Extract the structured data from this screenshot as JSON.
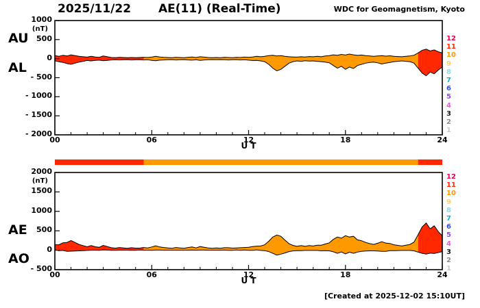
{
  "header": {
    "date": "2025/11/22",
    "title": "AE(11) (Real-Time)",
    "source": "WDC for Geomagnetism, Kyoto"
  },
  "footer": {
    "created": "[Created at 2025-12-02 15:10UT]"
  },
  "legend": {
    "entries": [
      {
        "label": "12",
        "color": "#e60050"
      },
      {
        "label": "11",
        "color": "#ff2800"
      },
      {
        "label": "10",
        "color": "#ff9900"
      },
      {
        "label": "9",
        "color": "#ffcc73"
      },
      {
        "label": "8",
        "color": "#8fd9e6"
      },
      {
        "label": "7",
        "color": "#00b4d9"
      },
      {
        "label": "6",
        "color": "#2d4fe6"
      },
      {
        "label": "5",
        "color": "#8c4fd9"
      },
      {
        "label": "4",
        "color": "#e659d9"
      },
      {
        "label": "3",
        "color": "#1a1a1a"
      },
      {
        "label": "2",
        "color": "#8c8c8c"
      },
      {
        "label": "1",
        "color": "#c9c9c9"
      }
    ]
  },
  "panels": {
    "top": {
      "left_labels": [
        "AU",
        "AL"
      ],
      "unit": "(nT)",
      "x_label": "U T",
      "y_ticks": [
        {
          "label": "1000",
          "value": 1000
        },
        {
          "label": "500",
          "value": 500
        },
        {
          "label": "0",
          "value": 0
        },
        {
          "label": "- 500",
          "value": -500
        },
        {
          "label": "- 1000",
          "value": -1000
        },
        {
          "label": "- 1500",
          "value": -1500
        },
        {
          "label": "- 2000",
          "value": -2000
        }
      ],
      "x_ticks": [
        {
          "label": "00",
          "value": 0
        },
        {
          "label": "06",
          "value": 6
        },
        {
          "label": "12",
          "value": 12
        },
        {
          "label": "18",
          "value": 18
        },
        {
          "label": "24",
          "value": 24
        }
      ]
    },
    "bottom": {
      "left_labels": [
        "AE",
        "AO"
      ],
      "unit": "(nT)",
      "x_label": "U T",
      "y_ticks": [
        {
          "label": "2000",
          "value": 2000
        },
        {
          "label": "1500",
          "value": 1500
        },
        {
          "label": "1000",
          "value": 1000
        },
        {
          "label": "500",
          "value": 500
        },
        {
          "label": "0",
          "value": 0
        },
        {
          "label": "- 500",
          "value": -500
        }
      ],
      "x_ticks": [
        {
          "label": "00",
          "value": 0
        },
        {
          "label": "06",
          "value": 6
        },
        {
          "label": "12",
          "value": 12
        },
        {
          "label": "18",
          "value": 18
        },
        {
          "label": "24",
          "value": 24
        }
      ]
    }
  },
  "chart_data": {
    "type": "area",
    "title": "AE(11) (Real-Time) 2025/11/22",
    "xlabel": "U T",
    "x_unit": "hour UT",
    "x_start": 0,
    "x_end": 24,
    "x_step": 0.25,
    "panels": [
      {
        "name": "AU-AL",
        "ylabel": "(nT)",
        "ylim": [
          -2000,
          1000
        ],
        "series": [
          {
            "name": "AU",
            "values": [
              80,
              60,
              90,
              70,
              100,
              80,
              60,
              50,
              40,
              60,
              45,
              35,
              70,
              50,
              30,
              25,
              35,
              30,
              25,
              30,
              25,
              30,
              35,
              30,
              40,
              60,
              45,
              35,
              30,
              25,
              35,
              30,
              25,
              35,
              45,
              30,
              50,
              40,
              30,
              25,
              30,
              25,
              35,
              30,
              25,
              35,
              30,
              40,
              35,
              45,
              60,
              50,
              60,
              80,
              90,
              70,
              80,
              60,
              50,
              45,
              40,
              50,
              45,
              55,
              50,
              60,
              50,
              70,
              80,
              100,
              90,
              110,
              95,
              120,
              100,
              85,
              95,
              80,
              70,
              60,
              70,
              80,
              65,
              75,
              60,
              55,
              50,
              60,
              70,
              90,
              150,
              220,
              250,
              200,
              230,
              180,
              150
            ]
          },
          {
            "name": "AL",
            "values": [
              -60,
              -80,
              -100,
              -130,
              -150,
              -120,
              -90,
              -70,
              -50,
              -60,
              -45,
              -40,
              -55,
              -45,
              -35,
              -30,
              -35,
              -30,
              -25,
              -35,
              -30,
              -25,
              -35,
              -30,
              -45,
              -55,
              -40,
              -35,
              -30,
              -25,
              -35,
              -30,
              -25,
              -35,
              -40,
              -30,
              -45,
              -35,
              -30,
              -25,
              -30,
              -25,
              -30,
              -35,
              -30,
              -25,
              -35,
              -30,
              -40,
              -50,
              -45,
              -60,
              -80,
              -150,
              -250,
              -320,
              -280,
              -200,
              -120,
              -80,
              -60,
              -70,
              -55,
              -65,
              -60,
              -70,
              -80,
              -90,
              -110,
              -180,
              -250,
              -200,
              -280,
              -220,
              -260,
              -180,
              -150,
              -120,
              -100,
              -90,
              -110,
              -140,
              -120,
              -100,
              -80,
              -70,
              -60,
              -70,
              -80,
              -120,
              -250,
              -380,
              -450,
              -350,
              -400,
              -300,
              -220
            ]
          }
        ]
      },
      {
        "name": "AE-AO",
        "ylabel": "(nT)",
        "ylim": [
          -500,
          2000
        ],
        "series": [
          {
            "name": "AE",
            "values": [
              140,
              140,
              190,
              200,
              250,
              200,
              150,
              120,
              90,
              120,
              90,
              75,
              125,
              95,
              65,
              55,
              70,
              60,
              50,
              65,
              55,
              55,
              70,
              60,
              85,
              115,
              85,
              70,
              60,
              50,
              70,
              60,
              50,
              70,
              85,
              60,
              95,
              75,
              60,
              50,
              60,
              50,
              65,
              65,
              55,
              60,
              65,
              70,
              75,
              95,
              105,
              110,
              140,
              230,
              340,
              390,
              360,
              260,
              170,
              125,
              100,
              120,
              100,
              120,
              110,
              130,
              130,
              160,
              190,
              280,
              340,
              310,
              375,
              340,
              360,
              265,
              245,
              200,
              170,
              150,
              180,
              220,
              185,
              175,
              140,
              125,
              110,
              130,
              150,
              210,
              400,
              600,
              700,
              550,
              630,
              480,
              370
            ]
          },
          {
            "name": "AO",
            "values": [
              10,
              -10,
              -5,
              -30,
              -25,
              -20,
              -15,
              -10,
              -5,
              0,
              0,
              -3,
              8,
              3,
              -3,
              -3,
              0,
              0,
              0,
              -3,
              -3,
              3,
              0,
              0,
              -3,
              3,
              3,
              0,
              0,
              0,
              0,
              0,
              0,
              0,
              3,
              0,
              3,
              3,
              0,
              0,
              0,
              0,
              3,
              -3,
              -3,
              5,
              -3,
              5,
              -3,
              -3,
              8,
              -5,
              -10,
              -35,
              -80,
              -125,
              -100,
              -70,
              -35,
              -18,
              -10,
              -10,
              -5,
              -5,
              -5,
              -5,
              -15,
              -10,
              -15,
              -40,
              -80,
              -45,
              -93,
              -50,
              -80,
              -48,
              -28,
              -20,
              -15,
              -15,
              -20,
              -30,
              -28,
              -13,
              -10,
              -8,
              -5,
              -5,
              -5,
              -15,
              -50,
              -80,
              -100,
              -75,
              -85,
              -60,
              -35
            ]
          }
        ]
      }
    ],
    "station_count_segments": [
      {
        "start_hour": 0,
        "end_hour": 5.5,
        "stations": 11,
        "color": "#ff2800"
      },
      {
        "start_hour": 5.5,
        "end_hour": 22.5,
        "stations": 10,
        "color": "#ff9900"
      },
      {
        "start_hour": 22.5,
        "end_hour": 24,
        "stations": 11,
        "color": "#ff2800"
      }
    ]
  }
}
